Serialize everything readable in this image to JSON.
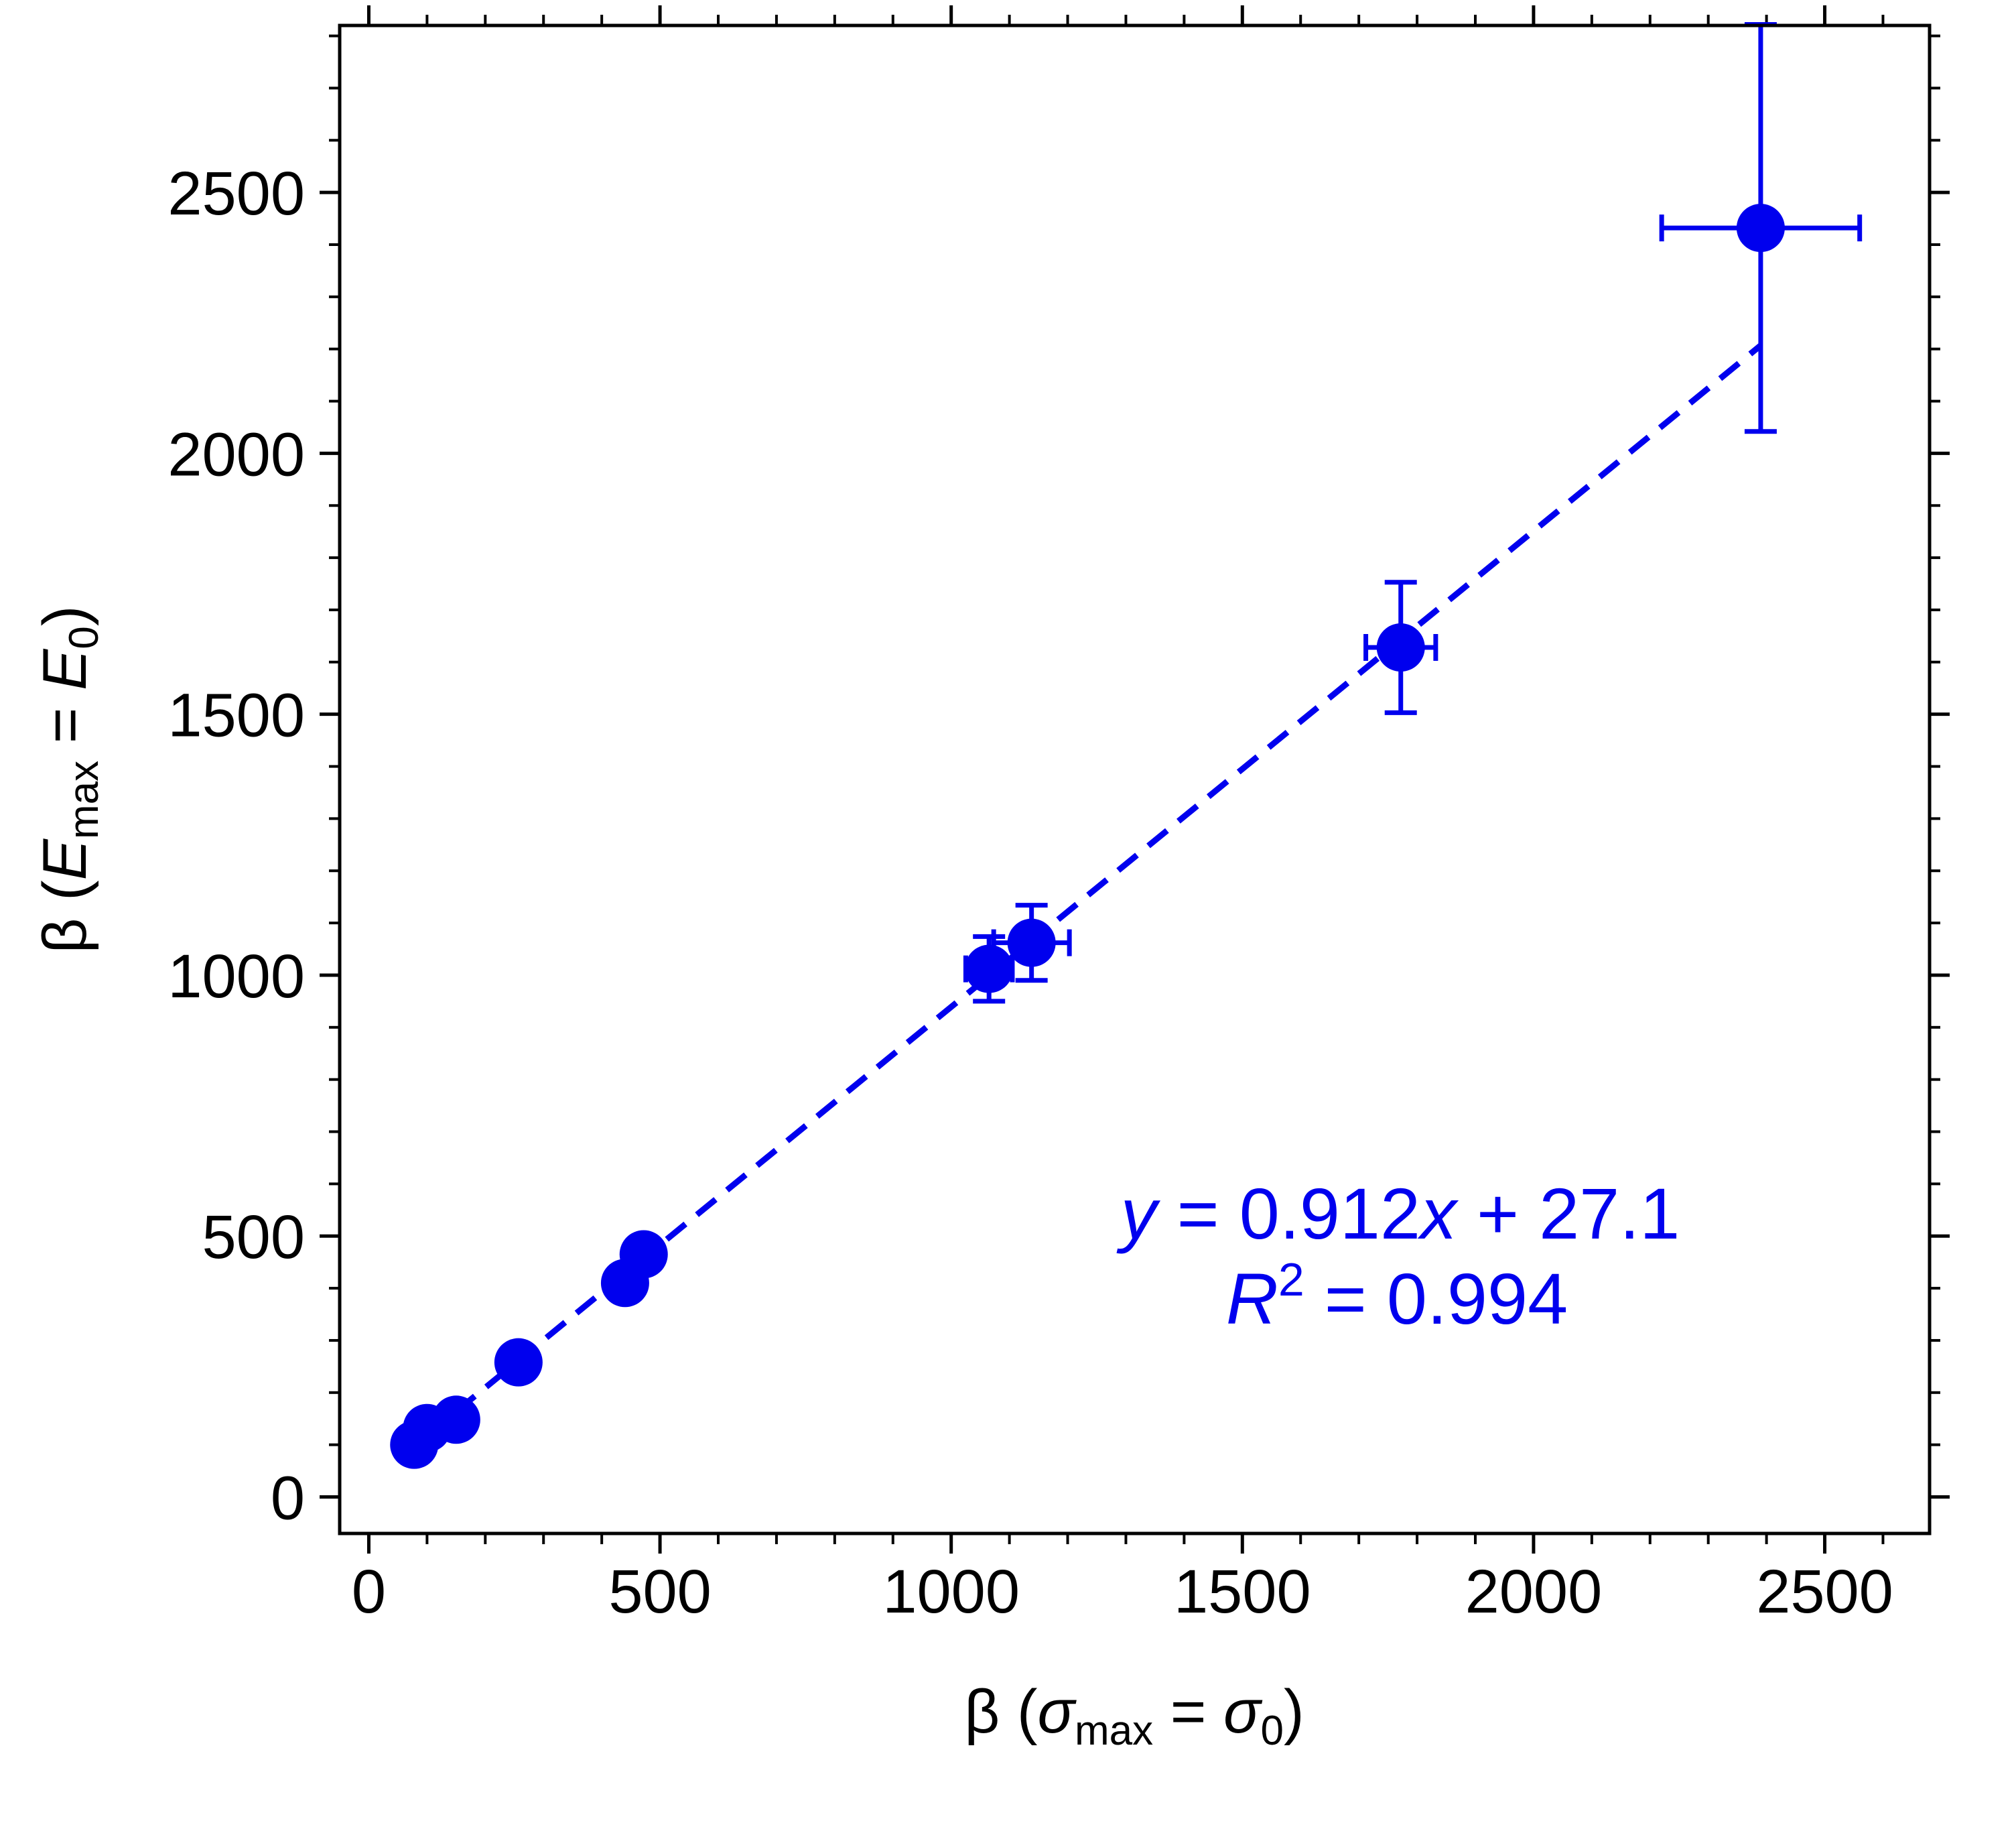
{
  "chart_data": {
    "type": "scatter",
    "xlim": [
      -50,
      2680
    ],
    "ylim": [
      -70,
      2820
    ],
    "x_ticks": [
      0,
      500,
      1000,
      1500,
      2000,
      2500
    ],
    "x_tick_labels": [
      "0",
      "500",
      "1000",
      "1500",
      "2000",
      "2500"
    ],
    "y_ticks": [
      0,
      500,
      1000,
      1500,
      2000,
      2500
    ],
    "y_tick_labels": [
      "0",
      "500",
      "1000",
      "1500",
      "2000",
      "2500"
    ],
    "x_minor_step": 100,
    "y_minor_step": 100,
    "xlabel": {
      "pre": "β (",
      "italic": "σ",
      "sub": "max",
      "mid": " = ",
      "italic2": "σ",
      "sub2": "0",
      "post": ")"
    },
    "ylabel": {
      "pre": "β (",
      "italic": "E",
      "sub": "max",
      "mid": " = ",
      "italic2": "E",
      "sub2": "0",
      "post": ")"
    },
    "color": "#0000ee",
    "series": [
      {
        "points": [
          {
            "x": 78,
            "y": 100
          },
          {
            "x": 100,
            "y": 132
          },
          {
            "x": 150,
            "y": 148
          },
          {
            "x": 257,
            "y": 258
          },
          {
            "x": 440,
            "y": 410
          },
          {
            "x": 472,
            "y": 465
          },
          {
            "x": 1065,
            "y": 1012,
            "xerr": 40,
            "yerr": 62
          },
          {
            "x": 1138,
            "y": 1062,
            "xerr": 65,
            "yerr": 72
          },
          {
            "x": 1772,
            "y": 1628,
            "xerr": 60,
            "yerr": 125
          },
          {
            "x": 2390,
            "y": 2432,
            "xerr": 170,
            "yerr": 390
          }
        ]
      }
    ],
    "fit": {
      "slope": 0.912,
      "intercept": 27.1,
      "x_range": [
        150,
        2390
      ],
      "style": "dashed"
    },
    "annotations": {
      "equation": {
        "y": "y",
        "eq": " = 0.912",
        "x": "x",
        "rest": " + 27.1"
      },
      "r2": {
        "R": "R",
        "sup": "2",
        "rest": " = 0.994"
      }
    }
  }
}
